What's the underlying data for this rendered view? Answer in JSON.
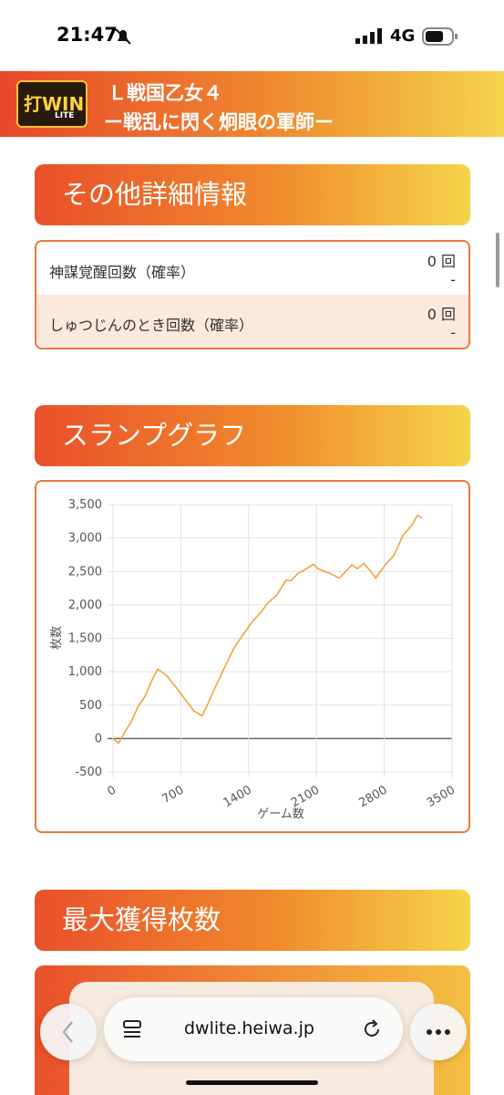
{
  "status_bar": {
    "time": "21:47",
    "network": "4G"
  },
  "header": {
    "logo": "打WIN",
    "logo_sub": "LITE",
    "title_line1": "Ｌ戦国乙女４",
    "title_line2": "ー戦乱に閃く炯眼の軍師ー"
  },
  "details": {
    "title": "その他詳細情報",
    "rows": [
      {
        "label": "神謀覚醒回数（確率）",
        "count": "0 回",
        "prob": "-"
      },
      {
        "label": "しゅつじんのとき回数（確率）",
        "count": "0 回",
        "prob": "-"
      }
    ]
  },
  "slump": {
    "title": "スランプグラフ"
  },
  "chart_data": {
    "type": "line",
    "xlabel": "ゲーム数",
    "ylabel": "枚数",
    "x": [
      0,
      56,
      122,
      188,
      263,
      329,
      385,
      460,
      555,
      649,
      743,
      837,
      920,
      979,
      1073,
      1167,
      1251,
      1345,
      1439,
      1533,
      1599,
      1693,
      1787,
      1836,
      1909,
      1975,
      2069,
      2116,
      2240,
      2335,
      2410,
      2466,
      2523,
      2589,
      2655,
      2711,
      2806,
      2900,
      2994,
      3088,
      3144,
      3190
    ],
    "series": [
      {
        "name": "枚数",
        "color": "#f2a33a",
        "values": [
          0,
          -70,
          100,
          250,
          490,
          630,
          820,
          1040,
          940,
          770,
          590,
          410,
          340,
          520,
          820,
          1110,
          1360,
          1560,
          1750,
          1900,
          2030,
          2150,
          2370,
          2360,
          2470,
          2520,
          2610,
          2540,
          2470,
          2400,
          2510,
          2600,
          2540,
          2620,
          2510,
          2400,
          2590,
          2740,
          3040,
          3200,
          3340,
          3300
        ]
      }
    ],
    "xlim": [
      0,
      3500
    ],
    "xticks": [
      0,
      700,
      1400,
      2100,
      2800,
      3500
    ],
    "ylim": [
      -500,
      3500
    ],
    "yticks": [
      -500,
      0,
      500,
      {
        "value": 1000,
        "label": "1,000"
      },
      {
        "value": 1500,
        "label": "1,500"
      },
      {
        "value": 2000,
        "label": "2,000"
      },
      {
        "value": 2500,
        "label": "2,500"
      },
      {
        "value": 3000,
        "label": "3,000"
      },
      {
        "value": 3500,
        "label": "3,500"
      }
    ],
    "grid": true
  },
  "max": {
    "title": "最大獲得枚数"
  },
  "browser": {
    "url": "dwlite.heiwa.jp"
  }
}
